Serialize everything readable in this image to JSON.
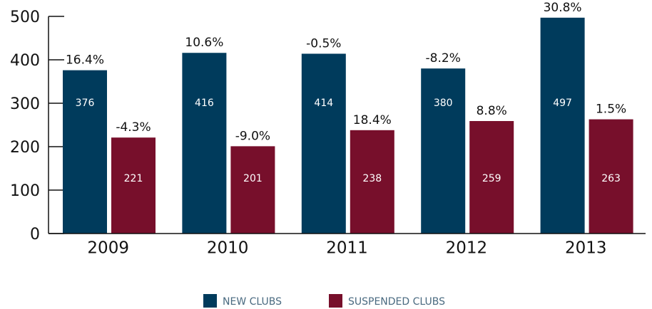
{
  "chart_data": {
    "type": "bar",
    "categories": [
      "2009",
      "2010",
      "2011",
      "2012",
      "2013"
    ],
    "series": [
      {
        "name": "NEW CLUBS",
        "color": "#003b5c",
        "values": [
          376,
          416,
          414,
          380,
          497
        ],
        "annotations": [
          "16.4%",
          "10.6%",
          "-0.5%",
          "-8.2%",
          "30.8%"
        ]
      },
      {
        "name": "SUSPENDED CLUBS",
        "color": "#770f2b",
        "values": [
          221,
          201,
          238,
          259,
          263
        ],
        "annotations": [
          "-4.3%",
          "-9.0%",
          "18.4%",
          "8.8%",
          "1.5%"
        ]
      }
    ],
    "ylim": [
      0,
      500
    ],
    "yticks": [
      0,
      100,
      200,
      300,
      400,
      500
    ]
  }
}
